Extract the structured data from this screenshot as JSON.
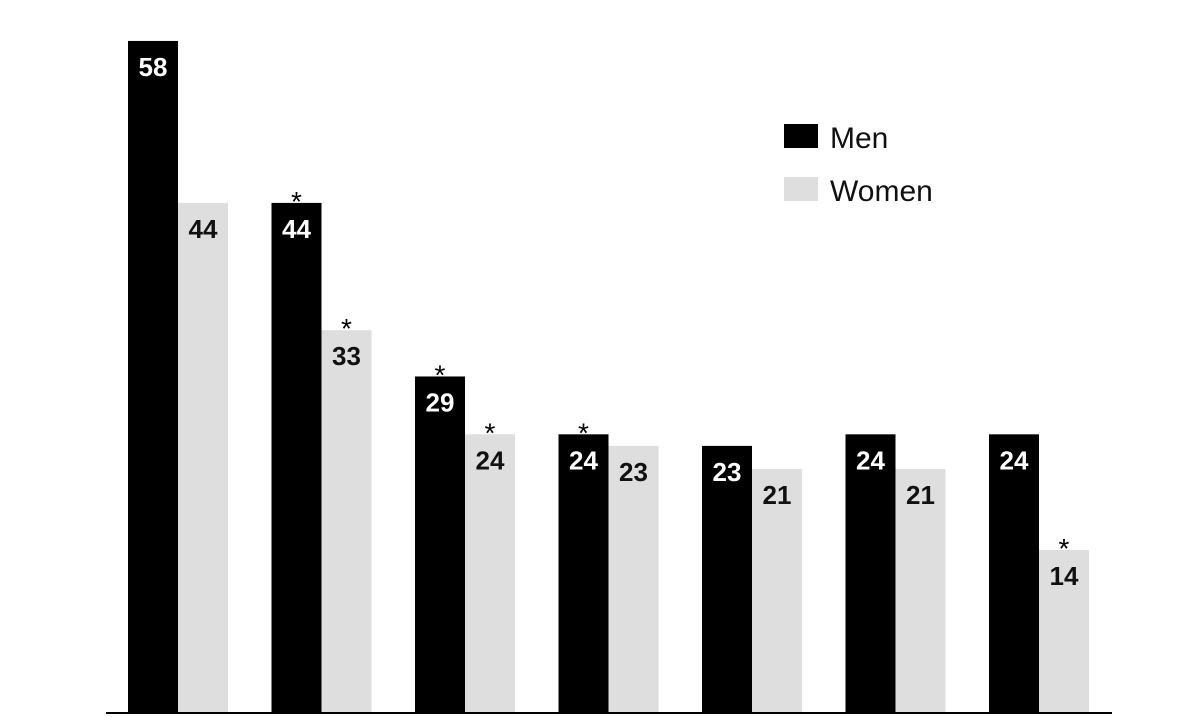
{
  "chart_data": {
    "type": "bar",
    "title": "",
    "xlabel": "",
    "ylabel": "",
    "ylim": [
      0,
      60
    ],
    "grid": false,
    "legend_position": "top-right",
    "categories": [
      "",
      "",
      "",
      "",
      "",
      "",
      ""
    ],
    "series": [
      {
        "name": "Men",
        "color": "#000000",
        "label_color": "#ffffff",
        "values": [
          58,
          44,
          29,
          24,
          23,
          24,
          24
        ],
        "labels": [
          "58",
          "44",
          "29",
          "24",
          "23",
          "24",
          "24"
        ],
        "significant": [
          false,
          true,
          true,
          true,
          false,
          false,
          false
        ]
      },
      {
        "name": "Women",
        "color": "#dedede",
        "label_color": "#111111",
        "values": [
          44,
          33,
          24,
          23,
          21,
          21,
          14
        ],
        "labels": [
          "44",
          "33",
          "24",
          "23",
          "21",
          "21",
          "14"
        ],
        "significant": [
          false,
          true,
          true,
          false,
          false,
          false,
          true
        ]
      }
    ],
    "significance_marker": "*"
  }
}
